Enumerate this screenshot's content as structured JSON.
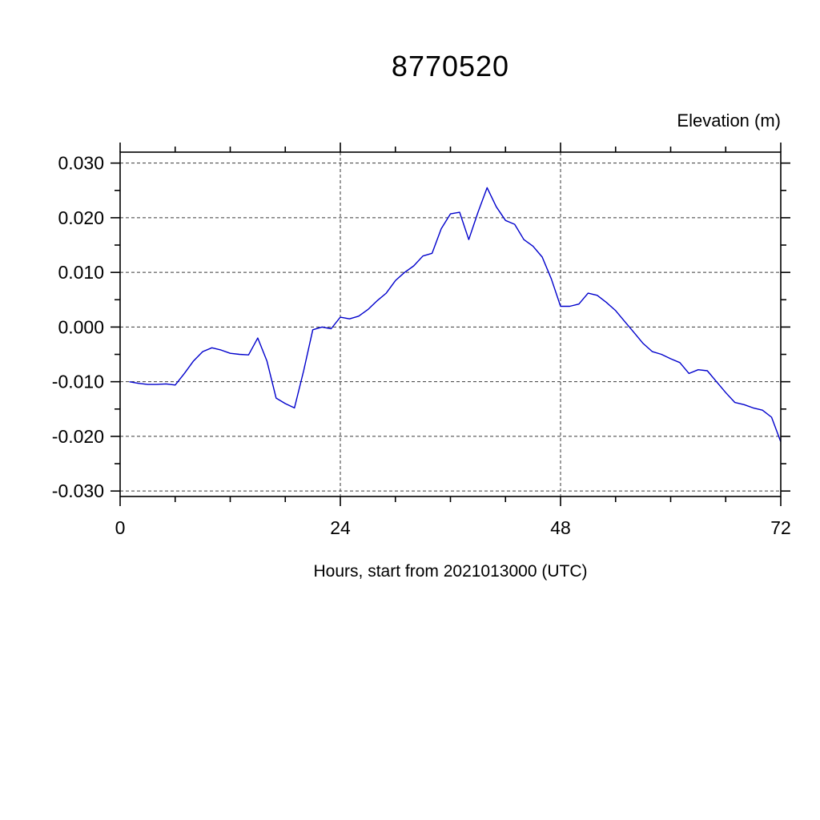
{
  "page": {
    "background": "#ffffff"
  },
  "chart_data": {
    "type": "line",
    "title": "8770520",
    "ylabel": "Elevation (m)",
    "xlabel": "Hours, start from 2021013000 (UTC)",
    "xlim": [
      0,
      72
    ],
    "ylim": [
      -0.031,
      0.032
    ],
    "grid": "dashed",
    "legend": "none",
    "line_color": "#0000cc",
    "x_tick_values": [
      0,
      24,
      48,
      72
    ],
    "x_tick_labels": [
      "0",
      "24",
      "48",
      "72"
    ],
    "x_minor_ticks": [
      6,
      12,
      18,
      30,
      36,
      42,
      54,
      60,
      66
    ],
    "y_tick_values": [
      -0.03,
      -0.02,
      -0.01,
      0.0,
      0.01,
      0.02,
      0.03
    ],
    "y_tick_labels": [
      "-0.030",
      "-0.020",
      "-0.010",
      "0.000",
      "0.010",
      "0.020",
      "0.030"
    ],
    "y_minor_ticks": [
      -0.025,
      -0.015,
      -0.005,
      0.005,
      0.015,
      0.025
    ],
    "grid_x": [
      24,
      48
    ],
    "grid_y": [
      -0.03,
      -0.02,
      -0.01,
      0.0,
      0.01,
      0.02,
      0.03
    ],
    "series": [
      {
        "name": "elevation",
        "x": [
          1,
          2,
          3,
          4,
          5,
          6,
          7,
          8,
          9,
          10,
          11,
          12,
          13,
          14,
          15,
          16,
          17,
          18,
          19,
          20,
          21,
          22,
          23,
          24,
          25,
          26,
          27,
          28,
          29,
          30,
          31,
          32,
          33,
          34,
          35,
          36,
          37,
          38,
          39,
          40,
          41,
          42,
          43,
          44,
          45,
          46,
          47,
          48,
          49,
          50,
          51,
          52,
          53,
          54,
          55,
          56,
          57,
          58,
          59,
          60,
          61,
          62,
          63,
          64,
          65,
          66,
          67,
          68,
          69,
          70,
          71,
          72
        ],
        "y": [
          -0.01,
          -0.0103,
          -0.0105,
          -0.0105,
          -0.0104,
          -0.0106,
          -0.0085,
          -0.0062,
          -0.0045,
          -0.0038,
          -0.0042,
          -0.0048,
          -0.005,
          -0.0051,
          -0.002,
          -0.0062,
          -0.013,
          -0.014,
          -0.0148,
          -0.008,
          -0.0005,
          0.0,
          -0.0003,
          0.0018,
          0.0015,
          0.002,
          0.0032,
          0.0048,
          0.0062,
          0.0085,
          0.01,
          0.0112,
          0.013,
          0.0135,
          0.018,
          0.0207,
          0.021,
          0.016,
          0.021,
          0.0255,
          0.022,
          0.0195,
          0.0188,
          0.016,
          0.0148,
          0.0128,
          0.0088,
          0.0038,
          0.0038,
          0.0042,
          0.0062,
          0.0058,
          0.0045,
          0.003,
          0.001,
          -0.001,
          -0.003,
          -0.0045,
          -0.005,
          -0.0058,
          -0.0065,
          -0.0085,
          -0.0078,
          -0.008,
          -0.01,
          -0.012,
          -0.0138,
          -0.0142,
          -0.0148,
          -0.0152,
          -0.0165,
          -0.021
        ]
      }
    ]
  }
}
